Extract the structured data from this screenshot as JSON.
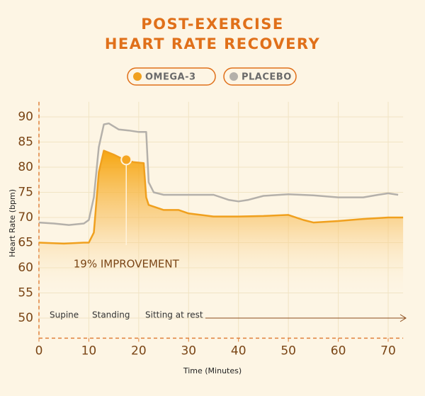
{
  "chart_data": {
    "type": "line",
    "title_lines": [
      "POST-EXERCISE",
      "HEART RATE RECOVERY"
    ],
    "x_label": "Time (Minutes)",
    "y_label": "Heart Rate (bpm)",
    "xlim": [
      0,
      73
    ],
    "ylim": [
      46,
      93
    ],
    "xticks": [
      0,
      10,
      20,
      30,
      40,
      50,
      60,
      70
    ],
    "yticks": [
      50,
      55,
      60,
      65,
      70,
      75,
      80,
      85,
      90
    ],
    "grid": true,
    "series": [
      {
        "name": "OMEGA-3",
        "color": "#f0a01e",
        "x": [
          0,
          5,
          9,
          10,
          11,
          12,
          13,
          15,
          17,
          19,
          21,
          21.5,
          22,
          25,
          28,
          30,
          35,
          40,
          45,
          50,
          53,
          55,
          60,
          65,
          70,
          73
        ],
        "values": [
          65,
          64.8,
          65,
          65,
          67,
          79,
          83.3,
          82.5,
          81.5,
          81,
          80.8,
          74,
          72.5,
          71.5,
          71.5,
          70.8,
          70.2,
          70.2,
          70.3,
          70.5,
          69.5,
          69,
          69.3,
          69.7,
          70,
          70
        ]
      },
      {
        "name": "PLACEBO",
        "color": "#b4b0aa",
        "x": [
          0,
          3,
          6,
          9,
          10,
          11,
          12,
          13,
          14,
          16,
          18,
          20,
          21.5,
          22,
          23,
          25,
          30,
          35,
          38,
          40,
          42,
          45,
          50,
          55,
          60,
          65,
          68,
          70,
          72
        ],
        "values": [
          69,
          68.8,
          68.5,
          68.8,
          69.5,
          74,
          84,
          88.5,
          88.7,
          87.5,
          87.3,
          87,
          87,
          77,
          75,
          74.5,
          74.5,
          74.5,
          73.5,
          73.2,
          73.5,
          74.3,
          74.6,
          74.4,
          74,
          74,
          74.5,
          74.8,
          74.5
        ]
      }
    ],
    "annotation": {
      "text": "19% IMPROVEMENT",
      "x": 17.5,
      "y": 81.5
    },
    "phases": [
      "Supine",
      "Standing",
      "Sitting at rest"
    ]
  }
}
